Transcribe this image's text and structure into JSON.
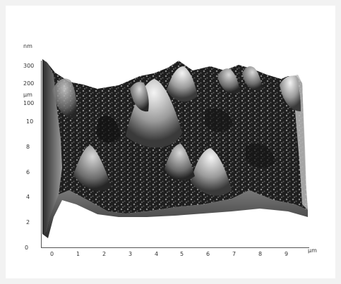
{
  "figure": {
    "z_axis": {
      "unit": "nm",
      "ticks": [
        "300",
        "200",
        "100"
      ]
    },
    "y_axis": {
      "unit": "µm",
      "ticks": [
        "10",
        "8",
        "6",
        "4",
        "2"
      ]
    },
    "x_axis": {
      "unit": "µm",
      "ticks": [
        "0",
        "1",
        "2",
        "3",
        "4",
        "5",
        "6",
        "7",
        "8",
        "9"
      ]
    },
    "origin_label": "0",
    "colors": {
      "background": "#ffffff",
      "surface_dark": "#1a1a1a",
      "surface_light": "#e8e8e8"
    }
  }
}
